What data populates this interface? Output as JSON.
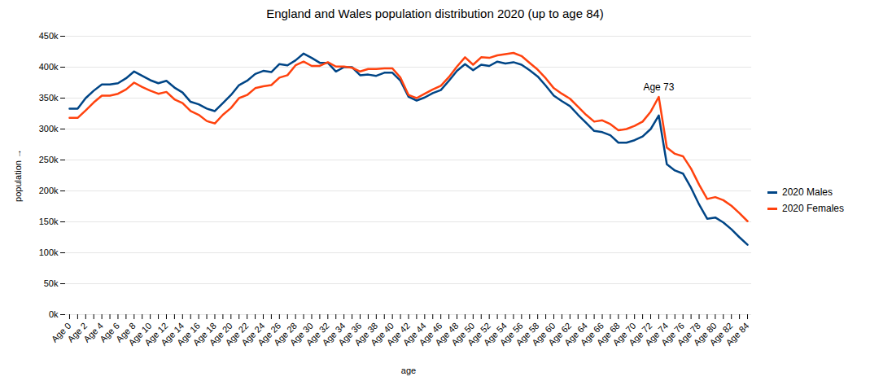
{
  "chart_data": {
    "type": "line",
    "title": "England and Wales population distribution 2020 (up to age 84)",
    "x_label": "age",
    "y_label": "population",
    "categories": [
      "Age 0",
      null,
      "Age 2",
      null,
      "Age 4",
      null,
      "Age 6",
      null,
      "Age 8",
      null,
      "Age 10",
      null,
      "Age 12",
      null,
      "Age 14",
      null,
      "Age 16",
      null,
      "Age 18",
      null,
      "Age 20",
      null,
      "Age 22",
      null,
      "Age 24",
      null,
      "Age 26",
      null,
      "Age 28",
      null,
      "Age 30",
      null,
      "Age 32",
      null,
      "Age 34",
      null,
      "Age 36",
      null,
      "Age 38",
      null,
      "Age 40",
      null,
      "Age 42",
      null,
      "Age 44",
      null,
      "Age 46",
      null,
      "Age 48",
      null,
      "Age 50",
      null,
      "Age 52",
      null,
      "Age 54",
      null,
      "Age 56",
      null,
      "Age 58",
      null,
      "Age 60",
      null,
      "Age 62",
      null,
      "Age 64",
      null,
      "Age 66",
      null,
      "Age 68",
      null,
      "Age 70",
      null,
      "Age 72",
      null,
      "Age 74",
      null,
      "Age 76",
      null,
      "Age 78",
      null,
      "Age 80",
      null,
      "Age 82",
      null,
      "Age 84"
    ],
    "series": [
      {
        "name": "2020 Males",
        "color": "#004586",
        "values": [
          333000,
          333000,
          350000,
          362000,
          372000,
          372000,
          374000,
          382000,
          393000,
          386000,
          379000,
          374000,
          378000,
          367000,
          359000,
          344000,
          340000,
          333000,
          329000,
          342000,
          355000,
          371000,
          378000,
          389000,
          394000,
          392000,
          405000,
          403000,
          411000,
          422000,
          415000,
          407000,
          407000,
          393000,
          400000,
          400000,
          387000,
          388000,
          386000,
          391000,
          391000,
          378000,
          352000,
          346000,
          351000,
          358000,
          363000,
          378000,
          394000,
          405000,
          395000,
          404000,
          402000,
          409000,
          406000,
          408000,
          404000,
          395000,
          385000,
          370000,
          354000,
          345000,
          337000,
          323000,
          310000,
          297000,
          295000,
          290000,
          278000,
          278000,
          282000,
          288000,
          300000,
          322000,
          243000,
          233000,
          228000,
          205000,
          178000,
          155000,
          157000,
          149000,
          138000,
          125000,
          113000
        ]
      },
      {
        "name": "2020 Females",
        "color": "#ff420e",
        "values": [
          318000,
          318000,
          330000,
          343000,
          354000,
          354000,
          357000,
          364000,
          375000,
          368000,
          362000,
          357000,
          360000,
          348000,
          342000,
          329000,
          323000,
          313000,
          309000,
          323000,
          334000,
          350000,
          355000,
          366000,
          369000,
          371000,
          383000,
          387000,
          403000,
          409000,
          402000,
          402000,
          408000,
          401000,
          401000,
          399000,
          393000,
          397000,
          397000,
          398000,
          398000,
          383000,
          355000,
          350000,
          357000,
          364000,
          370000,
          384000,
          401000,
          416000,
          404000,
          416000,
          415000,
          419000,
          421000,
          423000,
          418000,
          407000,
          396000,
          382000,
          366000,
          357000,
          349000,
          336000,
          323000,
          312000,
          314000,
          308000,
          298000,
          300000,
          305000,
          312000,
          328000,
          352000,
          270000,
          260000,
          256000,
          236000,
          210000,
          187000,
          190000,
          185000,
          176000,
          164000,
          151000
        ]
      }
    ],
    "ylim": [
      0,
      450000
    ],
    "yticks": [
      {
        "value": 0,
        "label": "0k"
      },
      {
        "value": 50000,
        "label": "50k"
      },
      {
        "value": 100000,
        "label": "100k"
      },
      {
        "value": 150000,
        "label": "150k"
      },
      {
        "value": 200000,
        "label": "200k"
      },
      {
        "value": 250000,
        "label": "250k"
      },
      {
        "value": 300000,
        "label": "300k"
      },
      {
        "value": 350000,
        "label": "350k"
      },
      {
        "value": 400000,
        "label": "400k"
      },
      {
        "value": 450000,
        "label": "450k"
      }
    ],
    "grid": true,
    "legend": "right",
    "annotations": [
      {
        "text": "Age 73",
        "x": 73,
        "y": 352000
      }
    ]
  }
}
